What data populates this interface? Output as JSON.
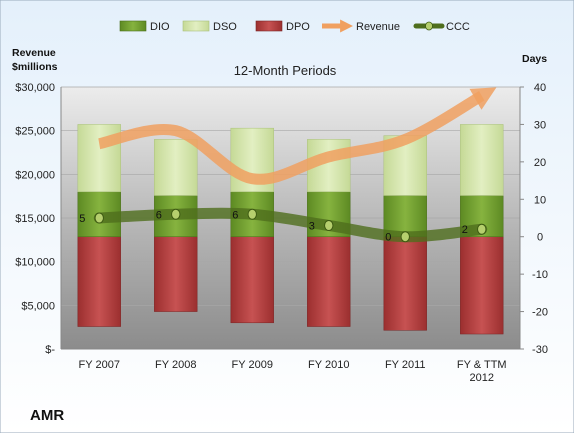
{
  "chart_data": {
    "type": "bar",
    "title": "12-Month Periods",
    "company": "AMR",
    "left_axis_title": [
      "Revenue",
      "$millions"
    ],
    "right_axis_title": "Days",
    "categories": [
      [
        "FY 2007"
      ],
      [
        "FY 2008"
      ],
      [
        "FY 2009"
      ],
      [
        "FY 2010"
      ],
      [
        "FY 2011"
      ],
      [
        "FY & TTM",
        "2012"
      ]
    ],
    "left_axis": {
      "min": 0,
      "max": 30000,
      "ticks": [
        "$-",
        "$5,000",
        "$10,000",
        "$15,000",
        "$20,000",
        "$25,000",
        "$30,000"
      ]
    },
    "right_axis": {
      "min": -30,
      "max": 40,
      "ticks": [
        "-30",
        "-20",
        "-10",
        "0",
        "10",
        "20",
        "30",
        "40"
      ]
    },
    "legend": {
      "placement": "top",
      "entries": [
        "DIO",
        "DSO",
        "DPO",
        "Revenue",
        "CCC"
      ]
    },
    "colors": {
      "DIO": "#6e9a2e",
      "DSO": "#d3e4a8",
      "DPO": "#b53e3e",
      "Revenue": "#f0a060",
      "CCC": "#4f6e1d"
    },
    "series": [
      {
        "name": "DIO",
        "axis": "days",
        "values": [
          12,
          11,
          12,
          12,
          11,
          11
        ]
      },
      {
        "name": "DSO",
        "axis": "days",
        "values": [
          18,
          15,
          17,
          14,
          16,
          19
        ]
      },
      {
        "name": "DPO",
        "axis": "days",
        "values": [
          -24,
          -20,
          -23,
          -24,
          -25,
          -26
        ]
      },
      {
        "name": "Revenue",
        "axis": "revenue",
        "values": [
          23500,
          25000,
          19500,
          22000,
          24000,
          29000
        ]
      },
      {
        "name": "CCC",
        "axis": "days",
        "values": [
          5,
          6,
          6,
          3,
          0,
          2
        ]
      }
    ]
  }
}
